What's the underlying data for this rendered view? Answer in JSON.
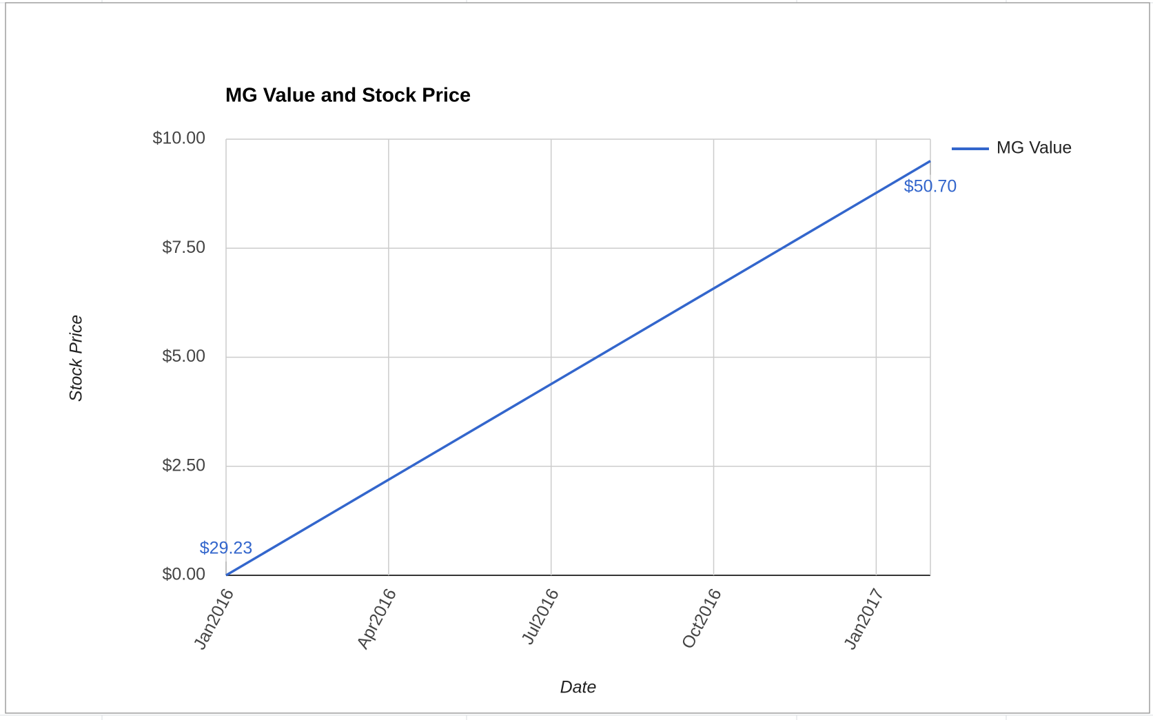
{
  "chart_data": {
    "type": "line",
    "title": "MG Value and Stock Price",
    "x_label": "Date",
    "y_label": "Stock Price",
    "x": [
      "2016-01",
      "2017-02"
    ],
    "series": [
      {
        "name": "MG Value",
        "color": "#3366cc",
        "values": [
          0,
          9.5
        ]
      }
    ],
    "annotations": [
      "$29.23",
      "$50.70"
    ],
    "xlim": [
      "2016-01",
      "2017-02"
    ],
    "xticks": [
      {
        "value": "2016-01",
        "label": "Jan2016"
      },
      {
        "value": "2016-04",
        "label": "Apr2016"
      },
      {
        "value": "2016-07",
        "label": "Jul2016"
      },
      {
        "value": "2016-10",
        "label": "Oct2016"
      },
      {
        "value": "2017-01",
        "label": "Jan2017"
      }
    ],
    "ylim": [
      0,
      10
    ],
    "yticks": [
      {
        "value": 0,
        "label": "$0.00"
      },
      {
        "value": 2.5,
        "label": "$2.50"
      },
      {
        "value": 5,
        "label": "$5.00"
      },
      {
        "value": 7.5,
        "label": "$7.50"
      },
      {
        "value": 10,
        "label": "$10.00"
      }
    ],
    "grid": true,
    "legend": "right"
  }
}
